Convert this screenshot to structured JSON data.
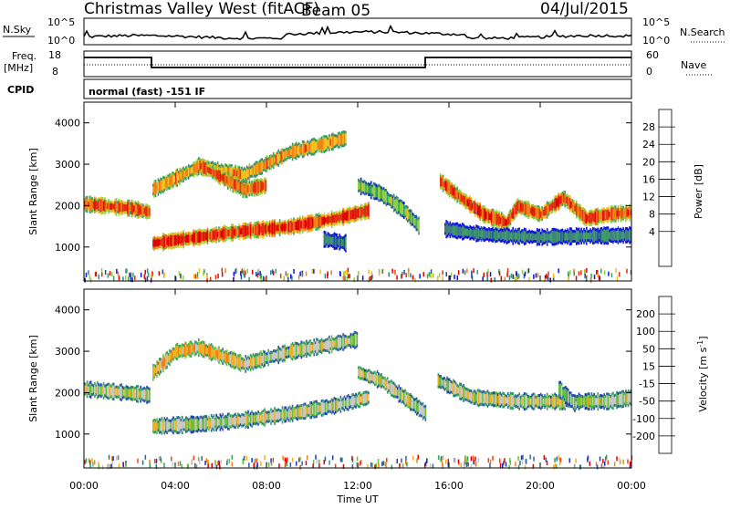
{
  "header": {
    "title": "Christmas Valley West (fitACF)",
    "beam": "Beam 05",
    "date": "04/Jul/2015"
  },
  "panels": {
    "nsky_label": "N.Sky",
    "nsearch_label": "N.Search",
    "nsky_ticks": [
      "10^5",
      "10^0"
    ],
    "nsearch_ticks": [
      "10^5",
      "10^0"
    ],
    "freq_label": "Freq.",
    "freq_unit": "[MHz]",
    "freq_ticks": [
      "18",
      "8"
    ],
    "nave_label": "Nave",
    "nave_ticks": [
      "60",
      "0"
    ],
    "cpid_label": "CPID",
    "cpid_value": "normal (fast) -151 IF"
  },
  "chart_data": [
    {
      "type": "heatmap",
      "name": "power",
      "ylabel": "Slant Range [km]",
      "yticks": [
        "4000",
        "3000",
        "2000",
        "1000"
      ],
      "ylim": [
        180,
        4500
      ],
      "colorbar_label": "Power [dB]",
      "colorbar_ticks": [
        "28",
        "24",
        "20",
        "16",
        "12",
        "8",
        "4"
      ],
      "colors": [
        "#1010e0",
        "#1a4fa0",
        "#3f7f7f",
        "#3aa060",
        "#8ad040",
        "#f0c020",
        "#f08010",
        "#e03010",
        "#e00000"
      ],
      "tracks": [
        {
          "x": [
            0,
            1,
            2,
            2.9
          ],
          "y": [
            2050,
            2000,
            1950,
            1850
          ],
          "level": 0.85
        },
        {
          "x": [
            3,
            5,
            7,
            9,
            11,
            12.5
          ],
          "y": [
            1100,
            1250,
            1400,
            1500,
            1700,
            1900
          ],
          "level": 0.9
        },
        {
          "x": [
            3,
            5,
            7,
            9,
            10.5,
            11.5
          ],
          "y": [
            2400,
            2950,
            2750,
            3300,
            3500,
            3650
          ],
          "level": 0.7
        },
        {
          "x": [
            5,
            6,
            7,
            8
          ],
          "y": [
            3000,
            2700,
            2400,
            2500
          ],
          "level": 0.8
        },
        {
          "x": [
            12,
            13,
            14,
            14.7
          ],
          "y": [
            2500,
            2300,
            1900,
            1500
          ],
          "level": 0.45
        },
        {
          "x": [
            15.6,
            16.5,
            17.5,
            18.5,
            19,
            20,
            21,
            22,
            23,
            24
          ],
          "y": [
            2600,
            2200,
            1800,
            1600,
            2000,
            1800,
            2200,
            1700,
            1800,
            1850
          ],
          "level": 0.85
        },
        {
          "x": [
            15.8,
            17,
            18,
            20,
            22,
            24
          ],
          "y": [
            1450,
            1350,
            1300,
            1250,
            1280,
            1300
          ],
          "level": 0.3
        },
        {
          "x": [
            10.5,
            11,
            11.5
          ],
          "y": [
            1200,
            1150,
            1100
          ],
          "level": 0.25
        }
      ]
    },
    {
      "type": "heatmap",
      "name": "velocity",
      "ylabel": "Slant Range [km]",
      "xlabel": "Time UT",
      "yticks": [
        "4000",
        "3000",
        "2000",
        "1000"
      ],
      "ylim": [
        180,
        4500
      ],
      "xticks": [
        "00:00",
        "04:00",
        "08:00",
        "12:00",
        "16:00",
        "20:00",
        "00:00"
      ],
      "xlim": [
        0,
        24
      ],
      "colorbar_label": "Velocity [m s^-1]",
      "colorbar_ticks": [
        "200",
        "100",
        "50",
        "15",
        "-15",
        "-50",
        "-100",
        "-200"
      ],
      "colors": [
        "#2030c0",
        "#3060a0",
        "#30a060",
        "#60c040",
        "#c8c8c0",
        "#f0b020",
        "#f08010",
        "#f04010",
        "#e00000"
      ],
      "tracks": [
        {
          "x": [
            0,
            1,
            2,
            2.9
          ],
          "y": [
            2100,
            2050,
            2000,
            1950
          ],
          "level": 0.5
        },
        {
          "x": [
            3,
            5,
            7,
            9,
            11,
            12.5
          ],
          "y": [
            1200,
            1250,
            1350,
            1500,
            1700,
            1900
          ],
          "level": 0.5
        },
        {
          "x": [
            3,
            4,
            5,
            6,
            7
          ],
          "y": [
            2500,
            3000,
            3100,
            2900,
            2700
          ],
          "level": 0.65
        },
        {
          "x": [
            7,
            9,
            11,
            12
          ],
          "y": [
            2700,
            3000,
            3200,
            3300
          ],
          "level": 0.5
        },
        {
          "x": [
            12,
            13,
            14,
            15
          ],
          "y": [
            2500,
            2300,
            1900,
            1500
          ],
          "level": 0.5
        },
        {
          "x": [
            15.5,
            17,
            19,
            21,
            23,
            24
          ],
          "y": [
            2300,
            1900,
            1800,
            1800,
            1800,
            1900
          ],
          "level": 0.5
        },
        {
          "x": [
            20.8,
            21.2,
            21.6
          ],
          "y": [
            2100,
            1900,
            1700
          ],
          "level": 0.35
        }
      ]
    }
  ]
}
